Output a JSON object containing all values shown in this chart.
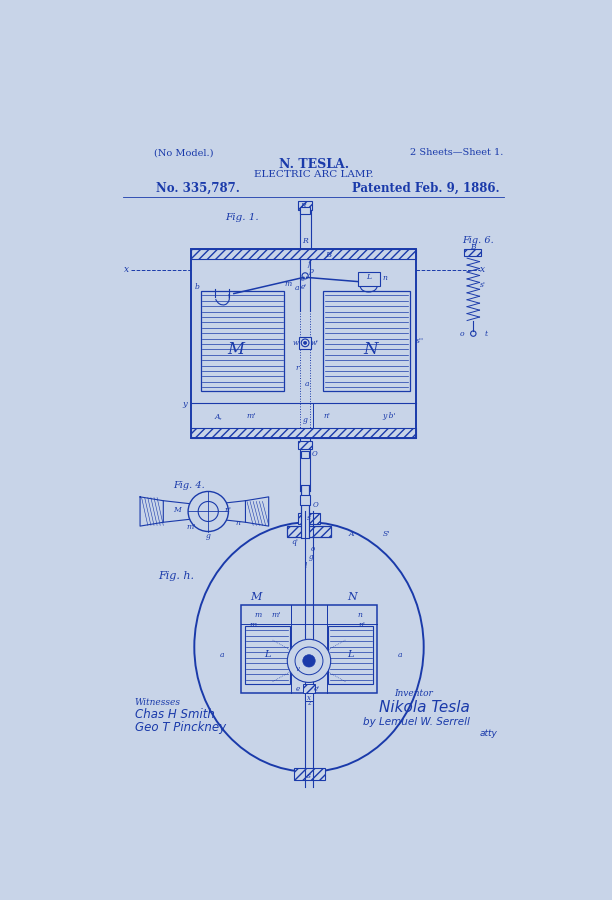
{
  "bg_color": "#c8d4e8",
  "line_color": "#1a3aaa",
  "title1": "N. TESLA.",
  "title2": "ELECTRIC ARC LAMP.",
  "no_model": "(No Model.)",
  "sheets": "2 Sheets—Sheet 1.",
  "patent_no": "No. 335,787.",
  "patent_date": "Patented Feb. 9, 1886.",
  "fig1_label": "Fig. 1.",
  "fig4_label": "Fig. 4.",
  "fig6_label": "Fig. 6.",
  "fig_h_label": "Fig. h.",
  "witnesses_label": "Witnesses",
  "witness1": "Chas H Smith",
  "witness2": "Geo T Pinckney",
  "inventor_label": "Inventor",
  "inventor_name": "Nikola Tesla",
  "attorney": "by Lemuel W. Serrell",
  "atty_suffix": "atty"
}
